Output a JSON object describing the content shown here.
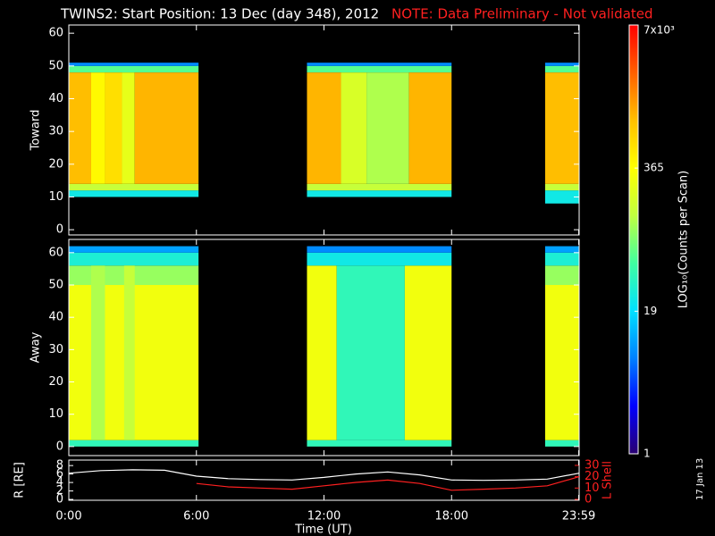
{
  "chart_data": {
    "type": "spectrogram",
    "title": "TWINS2: Start Position: 13 Dec (day 348), 2012",
    "note": "NOTE: Data Preliminary - Not validated",
    "note_color": "#ff2020",
    "xlim": [
      0,
      24
    ],
    "xticks": [
      {
        "value": 0,
        "label": "0:00"
      },
      {
        "value": 6,
        "label": "6:00"
      },
      {
        "value": 12,
        "label": "12:00"
      },
      {
        "value": 18,
        "label": "18:00"
      },
      {
        "value": 23.98,
        "label": "23:59"
      }
    ],
    "xlabel": "Time (UT)",
    "stamp": "17 Jan 13",
    "colorbar": {
      "label": "LOG₁₀(Counts per Scan)",
      "lim": [
        1,
        7000
      ],
      "log": true,
      "ticks": [
        1,
        19,
        365,
        {
          "value": 7000,
          "label": "7x10³"
        }
      ],
      "colors": [
        "#2a0070",
        "#0000ff",
        "#0080ff",
        "#00e0ff",
        "#40ffa0",
        "#c0ff40",
        "#ffff00",
        "#ffc000",
        "#ff6000",
        "#ff0000"
      ]
    },
    "panels": [
      {
        "ylabel": "Toward",
        "ylim": [
          -1.6,
          62.5
        ],
        "yticks": [
          0,
          10,
          20,
          30,
          40,
          50,
          60
        ],
        "blocks": [
          [
            0,
            6.1,
            10,
            12,
            25
          ],
          [
            0,
            6.1,
            12,
            14,
            150
          ],
          [
            0,
            6.1,
            48,
            50,
            60
          ],
          [
            0,
            6.1,
            50,
            51,
            8
          ],
          [
            0,
            1.05,
            14,
            48,
            1000
          ],
          [
            1.05,
            1.7,
            14,
            48,
            400
          ],
          [
            1.7,
            2.5,
            14,
            48,
            600
          ],
          [
            2.5,
            3.1,
            14,
            48,
            250
          ],
          [
            3.1,
            6.1,
            14,
            48,
            1100
          ],
          [
            11.2,
            18,
            10,
            12,
            25
          ],
          [
            11.2,
            18,
            12,
            14,
            150
          ],
          [
            11.2,
            18,
            48,
            50,
            60
          ],
          [
            11.2,
            18,
            50,
            51,
            8
          ],
          [
            11.2,
            12.8,
            14,
            48,
            1100
          ],
          [
            12.8,
            14,
            14,
            48,
            200
          ],
          [
            14,
            16,
            14,
            48,
            120
          ],
          [
            16,
            18,
            14,
            48,
            1100
          ],
          [
            22.4,
            24,
            8,
            12,
            25
          ],
          [
            22.4,
            24,
            12,
            14,
            150
          ],
          [
            22.4,
            24,
            48,
            50,
            60
          ],
          [
            22.4,
            24,
            50,
            51,
            8
          ],
          [
            22.4,
            24,
            14,
            48,
            1000
          ]
        ]
      },
      {
        "ylabel": "Away",
        "ylim": [
          -2.8,
          64.1
        ],
        "yticks": [
          0,
          10,
          20,
          30,
          40,
          50,
          60
        ],
        "blocks": [
          [
            0,
            6.1,
            0,
            2,
            40
          ],
          [
            0,
            6.1,
            2,
            50,
            300
          ],
          [
            0,
            6.1,
            50,
            56,
            100
          ],
          [
            0,
            6.1,
            56,
            60,
            30
          ],
          [
            0,
            6.1,
            60,
            62,
            10
          ],
          [
            1.05,
            1.7,
            2,
            56,
            120
          ],
          [
            2.6,
            3.1,
            2,
            56,
            150
          ],
          [
            11.2,
            18,
            0,
            2,
            40
          ],
          [
            11.2,
            12.6,
            2,
            56,
            300
          ],
          [
            12.6,
            15.8,
            2,
            56,
            40
          ],
          [
            15.8,
            18,
            2,
            56,
            300
          ],
          [
            11.2,
            18,
            56,
            60,
            25
          ],
          [
            11.2,
            18,
            60,
            62,
            8
          ],
          [
            22.4,
            24,
            0,
            2,
            40
          ],
          [
            22.4,
            24,
            2,
            50,
            300
          ],
          [
            22.4,
            24,
            50,
            56,
            100
          ],
          [
            22.4,
            24,
            56,
            60,
            30
          ],
          [
            22.4,
            24,
            60,
            62,
            10
          ]
        ]
      }
    ],
    "orbit": {
      "type": "line",
      "ylabel": "R [RE]",
      "ylim": [
        -0.2,
        9.3
      ],
      "yticks": [
        0,
        2,
        4,
        6,
        8
      ],
      "y2label": "L Shell",
      "y2lim": [
        -0.8,
        34.7
      ],
      "y2ticks": [
        0,
        10,
        20,
        30
      ],
      "x": [
        0,
        1.5,
        3,
        4.5,
        6,
        7.5,
        9,
        10.5,
        12,
        13.5,
        15,
        16.5,
        18,
        19.5,
        21,
        22.5,
        24
      ],
      "series": [
        {
          "color": "#ffffff",
          "values": [
            6.2,
            6.8,
            7.0,
            6.9,
            5.5,
            4.9,
            4.7,
            4.6,
            5.2,
            6.0,
            6.5,
            5.8,
            4.6,
            4.5,
            4.6,
            4.8,
            6.2
          ]
        },
        {
          "color": "#ff2020",
          "axis": "y2",
          "values": [
            null,
            null,
            null,
            null,
            14,
            11,
            10,
            9,
            12,
            15,
            17,
            14,
            8,
            9,
            10,
            12,
            20
          ]
        }
      ]
    }
  }
}
